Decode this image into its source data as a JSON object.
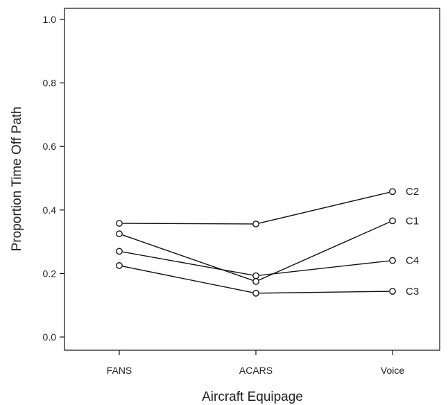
{
  "chart_data": {
    "type": "line",
    "xlabel": "Aircraft Equipage",
    "ylabel": "Proportion Time Off Path",
    "categories": [
      "FANS",
      "ACARS",
      "Voice"
    ],
    "ylim": [
      0.0,
      1.0
    ],
    "yticks": [
      "0.0",
      "0.2",
      "0.4",
      "0.6",
      "0.8",
      "1.0"
    ],
    "grid": false,
    "series": [
      {
        "name": "C2",
        "values": [
          0.358,
          0.356,
          0.458
        ]
      },
      {
        "name": "C1",
        "values": [
          0.325,
          0.175,
          0.366
        ]
      },
      {
        "name": "C4",
        "values": [
          0.27,
          0.193,
          0.241
        ]
      },
      {
        "name": "C3",
        "values": [
          0.225,
          0.138,
          0.144
        ]
      }
    ]
  }
}
